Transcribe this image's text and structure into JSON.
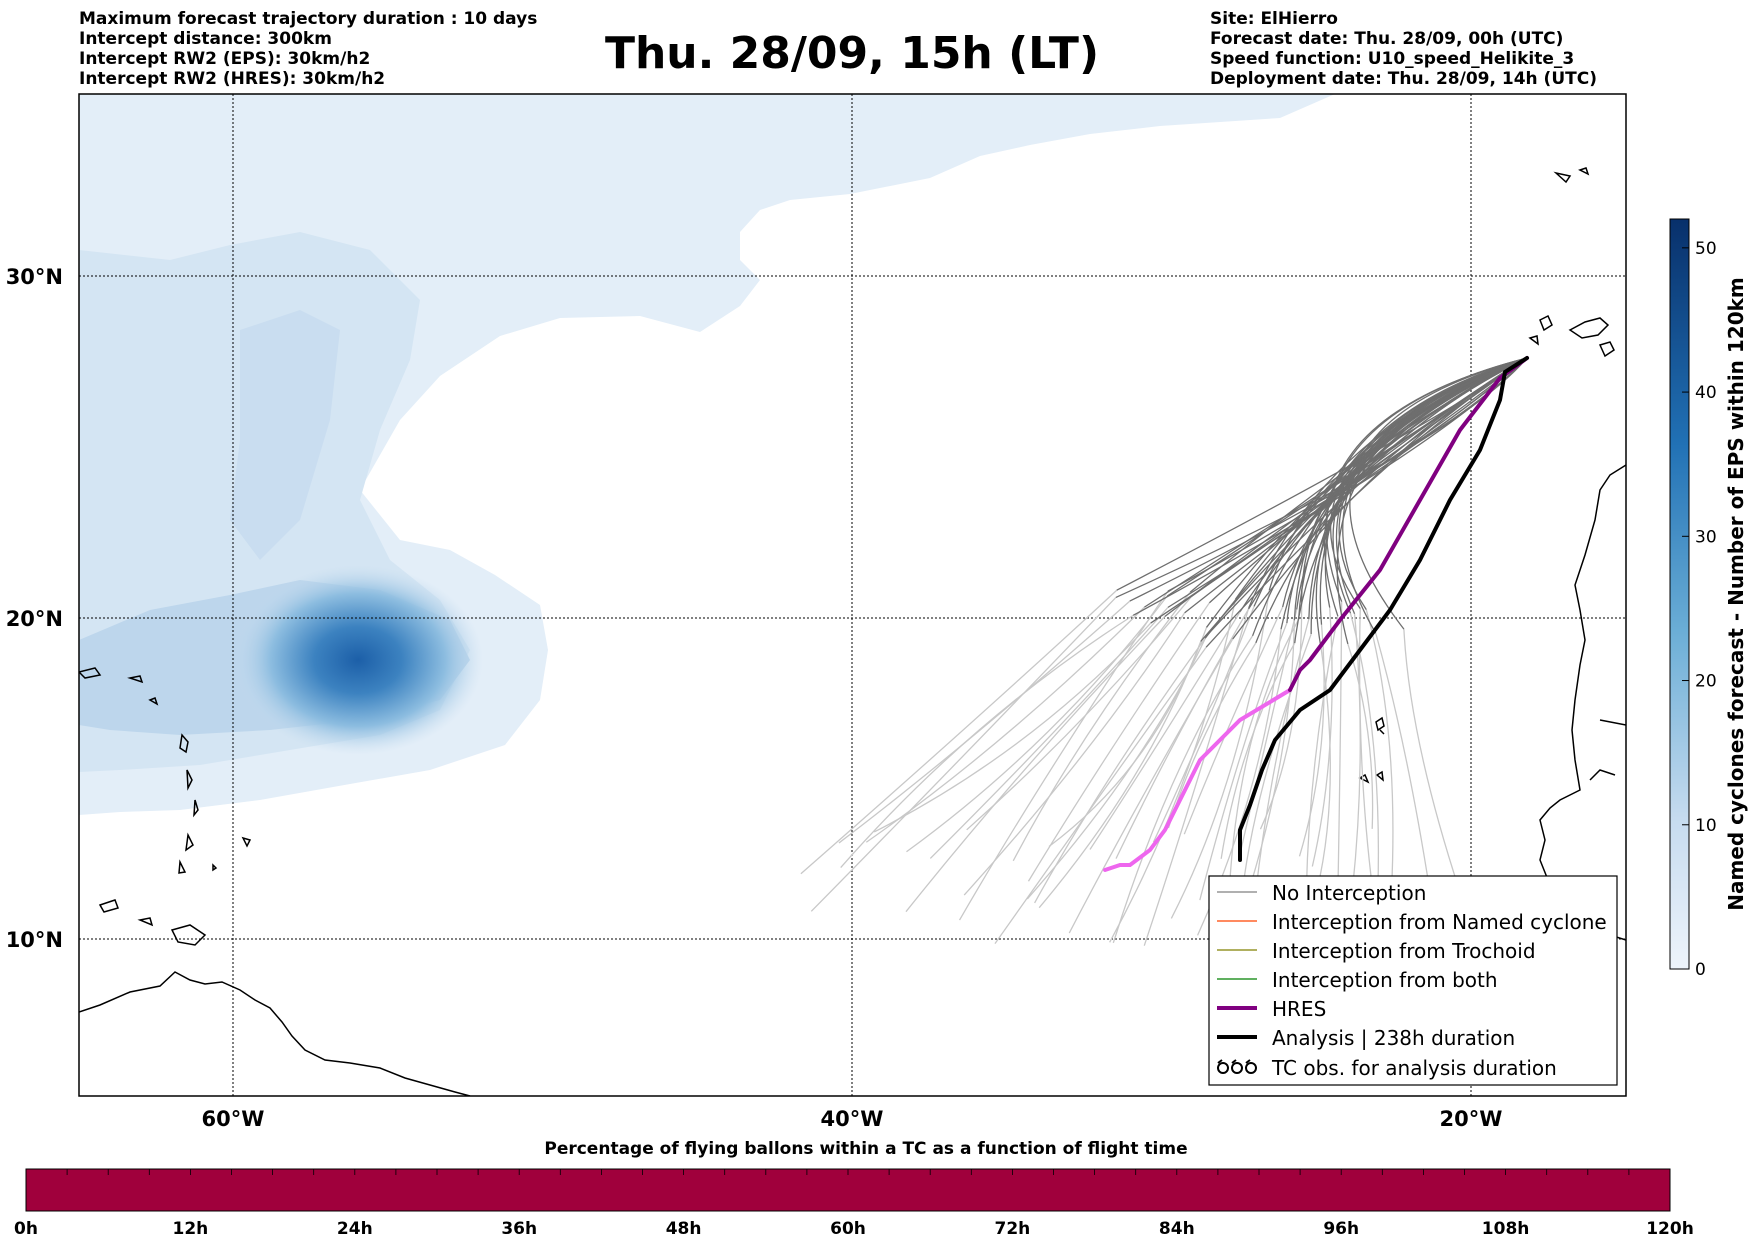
{
  "header": {
    "left_lines": [
      "Maximum forecast trajectory duration : 10 days",
      "Intercept distance: 300km",
      "Intercept RW2 (EPS):  30km/h2",
      "Intercept RW2 (HRES): 30km/h2"
    ],
    "title": "Thu. 28/09, 15h (LT)",
    "right_lines": [
      "Site: ElHierro",
      "Forecast date: Thu. 28/09, 00h (UTC)",
      "Speed function: U10_speed_Helikite_3",
      "Deployment date: Thu. 28/09, 14h (UTC)"
    ]
  },
  "map": {
    "lat_ticks": [
      "30°N",
      "20°N",
      "10°N"
    ],
    "lon_ticks": [
      "60°W",
      "40°W",
      "20°W"
    ],
    "extent": {
      "lon_min": -65,
      "lon_max": -15,
      "lat_min": 5.5,
      "lat_max": 35
    },
    "cyclone_hotspot": {
      "lon": -56,
      "lat": 18.5
    },
    "deployment_site": {
      "lon": -17.9,
      "lat": 27.6
    }
  },
  "colorbar": {
    "label": "Named cyclones forecast - Number of EPS within 120km",
    "ticks": [
      "0",
      "10",
      "20",
      "30",
      "40",
      "50"
    ],
    "range": [
      0,
      52
    ],
    "color_low": "#eef4fb",
    "color_high": "#08306b"
  },
  "legend": {
    "items": [
      {
        "label": "No Interception",
        "color": "#808080",
        "style": "thin"
      },
      {
        "label": "Interception from Named cyclone",
        "color": "#ff4500",
        "style": "thin"
      },
      {
        "label": "Interception from Trochoid",
        "color": "#808000",
        "style": "thin"
      },
      {
        "label": "Interception from both",
        "color": "#008000",
        "style": "thin"
      },
      {
        "label": "HRES",
        "color": "#800080",
        "style": "thick"
      },
      {
        "label": "Analysis | 238h duration",
        "color": "#000000",
        "style": "thick"
      },
      {
        "label": "TC obs. for analysis duration",
        "color": "#000000",
        "style": "symbol"
      }
    ]
  },
  "time_bar": {
    "title": "Percentage of flying ballons within a TC as a function of flight time",
    "ticks": [
      "0h",
      "12h",
      "24h",
      "36h",
      "48h",
      "60h",
      "72h",
      "84h",
      "96h",
      "108h",
      "120h"
    ],
    "fill_color": "#a0003c",
    "fill_fraction": 1.0
  },
  "colors": {
    "ensemble_old": "#6e6e6e",
    "ensemble_young": "#c8c8c8",
    "hres_old": "#800080",
    "hres_young": "#ee66ee",
    "analysis": "#000000",
    "coast": "#000000"
  }
}
